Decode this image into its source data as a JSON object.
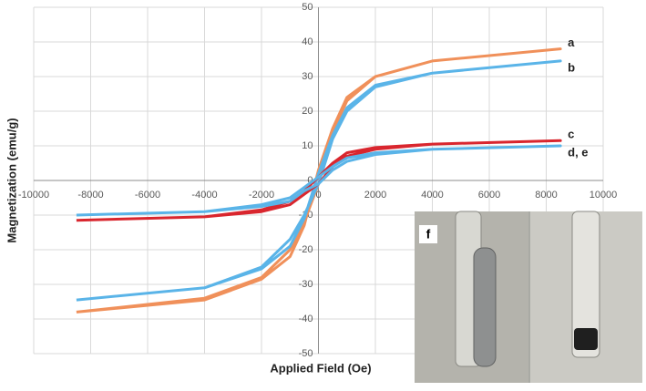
{
  "chart_data": {
    "type": "line",
    "xlabel": "Applied Field (Oe)",
    "ylabel": "Magnetization (emu/g)",
    "x": [
      -8500,
      -4000,
      -2000,
      -1000,
      -500,
      0,
      500,
      1000,
      2000,
      4000,
      8500,
      4000,
      2000,
      1000,
      500,
      0,
      -500,
      -1000,
      -2000,
      -4000,
      -8500
    ],
    "series": [
      {
        "name": "a",
        "color": "#f0905a",
        "values": [
          -38,
          -34,
          -28,
          -20,
          -12,
          -1,
          14,
          23,
          30,
          34.5,
          38,
          34.5,
          30,
          24,
          15,
          3,
          -13,
          -22,
          -28.5,
          -34.5,
          -38
        ]
      },
      {
        "name": "b",
        "color": "#5ab4e8",
        "values": [
          -34.5,
          -31,
          -25,
          -17,
          -10,
          -1,
          12,
          20,
          27,
          31,
          34.5,
          31,
          27.5,
          21,
          13,
          2,
          -11,
          -19,
          -25.5,
          -31,
          -34.5
        ]
      },
      {
        "name": "c",
        "color": "#d9262e",
        "values": [
          -11.5,
          -10.5,
          -9,
          -7,
          -4,
          -1,
          4,
          7,
          9,
          10.5,
          11.5,
          10.5,
          9.5,
          8,
          5,
          1,
          -3,
          -6,
          -8.5,
          -10.5,
          -11.5
        ]
      },
      {
        "name": "d, e",
        "color": "#5ab4e8",
        "values": [
          -10,
          -9,
          -7.5,
          -6,
          -3,
          -1,
          3,
          5.5,
          7.5,
          9,
          10,
          9,
          8,
          6.5,
          4,
          1,
          -2,
          -5,
          -7,
          -9,
          -10
        ]
      }
    ],
    "xlim": [
      -10000,
      10000
    ],
    "xticks": [
      -10000,
      -8000,
      -6000,
      -4000,
      -2000,
      0,
      2000,
      4000,
      6000,
      8000,
      10000
    ],
    "ylim": [
      -50,
      50
    ],
    "yticks": [
      -50,
      -40,
      -30,
      -20,
      -10,
      0,
      10,
      20,
      30,
      40,
      50
    ],
    "grid": true,
    "inset_label": "f"
  }
}
